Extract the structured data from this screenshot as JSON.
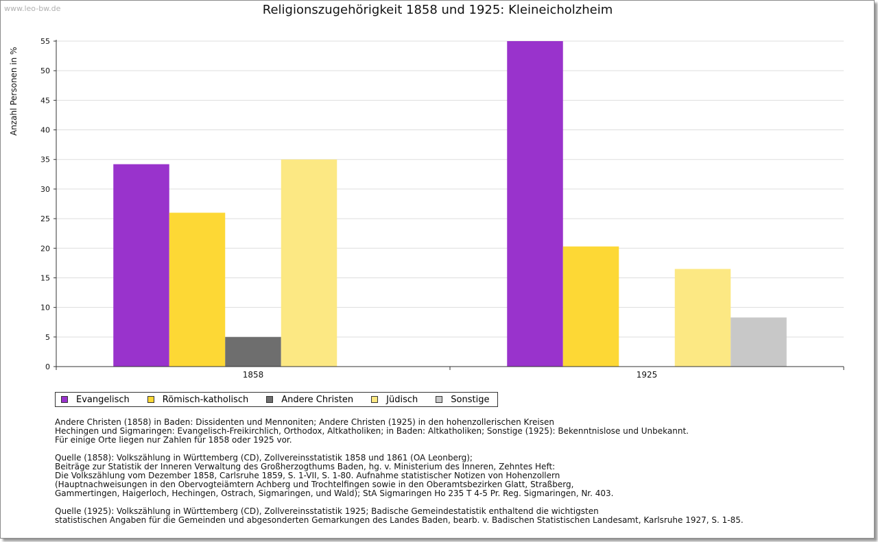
{
  "watermark": "www.leo-bw.de",
  "chart_data": {
    "type": "bar",
    "title": "Religionszugehörigkeit 1858 und 1925: Kleineicholzheim",
    "ylabel": "Anzahl Personen in %",
    "xlabel": "",
    "ylim": [
      0,
      55
    ],
    "yticks": [
      "0",
      "5",
      "10",
      "15",
      "20",
      "25",
      "30",
      "35",
      "40",
      "45",
      "50",
      "55"
    ],
    "categories": [
      "1858",
      "1925"
    ],
    "series": [
      {
        "name": "Evangelisch",
        "color": "#9933CC",
        "values": [
          34.2,
          55.0
        ]
      },
      {
        "name": "Römisch-katholisch",
        "color": "#FDD835",
        "values": [
          26.0,
          20.3
        ]
      },
      {
        "name": "Andere Christen",
        "color": "#6E6E6E",
        "values": [
          5.0,
          0
        ]
      },
      {
        "name": "Jüdisch",
        "color": "#FCE883",
        "values": [
          35.0,
          16.5
        ]
      },
      {
        "name": "Sonstige",
        "color": "#C8C8C8",
        "values": [
          0,
          8.3
        ]
      }
    ],
    "grid": true,
    "legend_position": "bottom-left"
  },
  "notes": {
    "p1": "Andere Christen (1858) in Baden: Dissidenten und Mennoniten; Andere Christen (1925) in den hohenzollerischen Kreisen\nHechingen und Sigmaringen: Evangelisch-Freikirchlich, Orthodox, Altkatholiken; in Baden: Altkatholiken; Sonstige (1925): Bekenntnislose und Unbekannt.\nFür einige Orte liegen nur Zahlen für 1858 oder 1925 vor.",
    "p2": "Quelle (1858): Volkszählung in Württemberg (CD), Zollvereinsstatistik 1858 und 1861 (OA Leonberg);\nBeiträge zur Statistik der Inneren Verwaltung des Großherzogthums Baden, hg. v. Ministerium des Inneren, Zehntes Heft:\nDie Volkszählung vom Dezember 1858, Carlsruhe 1859, S. 1-VII, S. 1-80. Aufnahme statistischer Notizen von Hohenzollern\n(Hauptnachweisungen in den Obervogteiämtern Achberg und Trochtelfingen sowie in den Oberamtsbezirken Glatt, Straßberg,\nGammertingen, Haigerloch, Hechingen, Ostrach, Sigmaringen, und Wald); StA Sigmaringen Ho 235 T 4-5 Pr. Reg. Sigmaringen, Nr. 403.",
    "p3": "Quelle (1925): Volkszählung in Württemberg (CD), Zollvereinsstatistik 1925; Badische Gemeindestatistik enthaltend die wichtigsten\nstatistischen Angaben für die Gemeinden und abgesonderten Gemarkungen des Landes Baden, bearb. v. Badischen Statistischen Landesamt, Karlsruhe 1927, S. 1-85."
  }
}
